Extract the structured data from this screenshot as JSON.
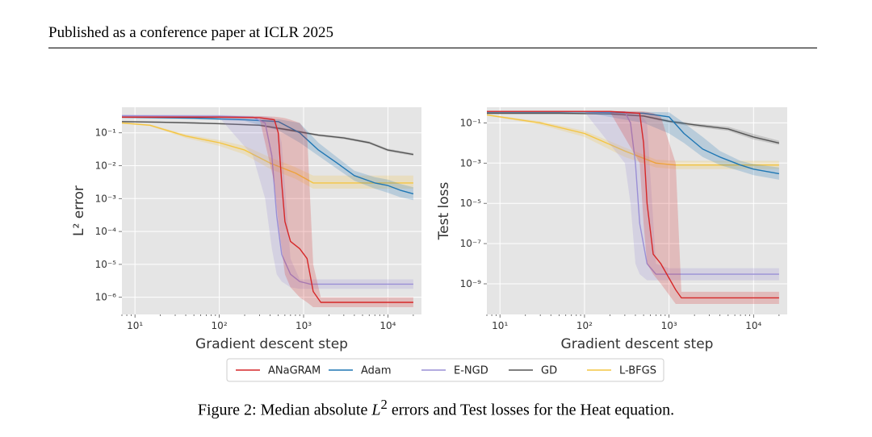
{
  "header": {
    "text": "Published as a conference paper at ICLR 2025"
  },
  "caption": {
    "prefix": "Figure 2: Median absolute",
    "math": "L",
    "sup": "2",
    "suffix": "errors and Test losses for the Heat equation."
  },
  "legend": [
    "ANaGRAM",
    "Adam",
    "E-NGD",
    "GD",
    "L-BFGS"
  ],
  "colors": {
    "ANaGRAM": "#d62728",
    "Adam": "#1f77b4",
    "E-NGD": "#9a8fd6",
    "GD": "#555555",
    "L-BFGS": "#f4c542",
    "plot_bg": "#e5e5e5",
    "grid": "#ffffff"
  },
  "chart_data": [
    {
      "type": "line",
      "xscale": "log",
      "yscale": "log",
      "xlim": [
        7,
        25000
      ],
      "ylim": [
        3e-07,
        0.6
      ],
      "xlabel": "Gradient descent step",
      "ylabel": "L² error",
      "xticks": [
        10,
        100,
        1000,
        10000
      ],
      "xtick_labels": [
        "10¹",
        "10²",
        "10³",
        "10⁴"
      ],
      "yticks": [
        1e-06,
        1e-05,
        0.0001,
        0.001,
        0.01,
        0.1
      ],
      "ytick_labels": [
        "10⁻⁶",
        "10⁻⁵",
        "10⁻⁴",
        "10⁻³",
        "10⁻²",
        "10⁻¹"
      ],
      "grid": true,
      "series": [
        {
          "name": "GD",
          "x": [
            7,
            20,
            50,
            100,
            300,
            700,
            1500,
            3000,
            6000,
            10000,
            20000
          ],
          "y": [
            0.22,
            0.21,
            0.2,
            0.19,
            0.17,
            0.12,
            0.085,
            0.07,
            0.05,
            0.03,
            0.022
          ],
          "lower": [
            0.21,
            0.2,
            0.19,
            0.18,
            0.16,
            0.11,
            0.078,
            0.064,
            0.046,
            0.027,
            0.02
          ],
          "upper": [
            0.23,
            0.22,
            0.21,
            0.2,
            0.18,
            0.13,
            0.092,
            0.076,
            0.055,
            0.033,
            0.024
          ]
        },
        {
          "name": "L-BFGS",
          "x": [
            7,
            15,
            40,
            100,
            200,
            400,
            800,
            1300,
            2000,
            5000,
            20000
          ],
          "y": [
            0.2,
            0.17,
            0.08,
            0.05,
            0.03,
            0.012,
            0.006,
            0.003,
            0.003,
            0.003,
            0.003
          ],
          "lower": [
            0.19,
            0.16,
            0.07,
            0.04,
            0.022,
            0.008,
            0.004,
            0.002,
            0.002,
            0.002,
            0.002
          ],
          "upper": [
            0.21,
            0.18,
            0.09,
            0.06,
            0.04,
            0.018,
            0.009,
            0.005,
            0.005,
            0.005,
            0.005
          ]
        },
        {
          "name": "Adam",
          "x": [
            7,
            50,
            200,
            500,
            900,
            1500,
            2500,
            4000,
            7000,
            10000,
            14000,
            20000
          ],
          "y": [
            0.3,
            0.28,
            0.25,
            0.22,
            0.1,
            0.03,
            0.012,
            0.005,
            0.003,
            0.0025,
            0.0018,
            0.0014
          ],
          "lower": [
            0.28,
            0.26,
            0.23,
            0.12,
            0.05,
            0.02,
            0.008,
            0.0035,
            0.002,
            0.0015,
            0.0011,
            0.0009
          ],
          "upper": [
            0.32,
            0.3,
            0.27,
            0.26,
            0.2,
            0.05,
            0.018,
            0.007,
            0.0045,
            0.0038,
            0.0028,
            0.0022
          ]
        },
        {
          "name": "E-NGD",
          "x": [
            7,
            100,
            250,
            350,
            420,
            480,
            550,
            700,
            900,
            1200,
            2000,
            20000
          ],
          "y": [
            0.33,
            0.32,
            0.3,
            0.2,
            0.02,
            0.0003,
            2e-05,
            5e-06,
            3e-06,
            2.5e-06,
            2.5e-06,
            2.5e-06
          ],
          "lower": [
            0.3,
            0.29,
            0.02,
            0.001,
            3e-05,
            5e-06,
            3e-06,
            2e-06,
            1.8e-06,
            1.8e-06,
            1.8e-06,
            1.8e-06
          ],
          "upper": [
            0.36,
            0.35,
            0.33,
            0.32,
            0.3,
            0.2,
            0.05,
            1.5e-05,
            3.5e-06,
            3.5e-06,
            3.5e-06,
            3.5e-06
          ]
        },
        {
          "name": "ANaGRAM",
          "x": [
            7,
            100,
            300,
            450,
            500,
            550,
            600,
            700,
            900,
            1100,
            1300,
            1600,
            20000
          ],
          "y": [
            0.3,
            0.3,
            0.29,
            0.25,
            0.1,
            0.003,
            0.0002,
            5e-05,
            3e-05,
            1.5e-05,
            1.5e-06,
            7e-07,
            7e-07
          ],
          "lower": [
            0.28,
            0.28,
            0.27,
            0.003,
            0.0002,
            3e-05,
            5e-06,
            2e-06,
            1e-06,
            7e-07,
            5e-07,
            5e-07,
            5e-07
          ],
          "upper": [
            0.32,
            0.32,
            0.32,
            0.31,
            0.3,
            0.29,
            0.28,
            0.25,
            0.2,
            0.1,
            1e-05,
            1e-06,
            1e-06
          ]
        }
      ]
    },
    {
      "type": "line",
      "xscale": "log",
      "yscale": "log",
      "xlim": [
        7,
        25000
      ],
      "ylim": [
        3e-11,
        0.6
      ],
      "xlabel": "Gradient descent step",
      "ylabel": "Test loss",
      "xticks": [
        10,
        100,
        1000,
        10000
      ],
      "xtick_labels": [
        "10¹",
        "10²",
        "10³",
        "10⁴"
      ],
      "yticks": [
        1e-09,
        1e-07,
        1e-05,
        0.001,
        0.1
      ],
      "ytick_labels": [
        "10⁻⁹",
        "10⁻⁷",
        "10⁻⁵",
        "10⁻³",
        "10⁻¹"
      ],
      "grid": true,
      "series": [
        {
          "name": "GD",
          "x": [
            7,
            50,
            200,
            500,
            1000,
            2000,
            5000,
            10000,
            20000
          ],
          "y": [
            0.3,
            0.3,
            0.28,
            0.22,
            0.12,
            0.08,
            0.05,
            0.02,
            0.01
          ],
          "lower": [
            0.28,
            0.28,
            0.26,
            0.2,
            0.1,
            0.065,
            0.04,
            0.015,
            0.008
          ],
          "upper": [
            0.32,
            0.32,
            0.3,
            0.24,
            0.14,
            0.095,
            0.065,
            0.028,
            0.013
          ]
        },
        {
          "name": "L-BFGS",
          "x": [
            7,
            30,
            100,
            300,
            700,
            1200,
            3000,
            10000,
            20000
          ],
          "y": [
            0.25,
            0.1,
            0.03,
            0.004,
            0.001,
            0.0008,
            0.0008,
            0.0008,
            0.0008
          ],
          "lower": [
            0.23,
            0.08,
            0.02,
            0.002,
            0.0006,
            0.0005,
            0.0005,
            0.0005,
            0.0005
          ],
          "upper": [
            0.27,
            0.12,
            0.04,
            0.006,
            0.0015,
            0.0013,
            0.0013,
            0.0013,
            0.0013
          ]
        },
        {
          "name": "Adam",
          "x": [
            7,
            100,
            500,
            1000,
            1500,
            2500,
            4000,
            7000,
            10000,
            20000
          ],
          "y": [
            0.35,
            0.35,
            0.3,
            0.2,
            0.03,
            0.005,
            0.002,
            0.0008,
            0.0005,
            0.0003
          ],
          "lower": [
            0.33,
            0.33,
            0.1,
            0.03,
            0.01,
            0.002,
            0.0008,
            0.0004,
            0.00025,
            0.00015
          ],
          "upper": [
            0.37,
            0.37,
            0.35,
            0.34,
            0.1,
            0.02,
            0.004,
            0.0013,
            0.0009,
            0.0006
          ]
        },
        {
          "name": "E-NGD",
          "x": [
            7,
            100,
            300,
            350,
            400,
            450,
            550,
            700,
            1000,
            20000
          ],
          "y": [
            0.37,
            0.37,
            0.35,
            0.1,
            0.001,
            1e-06,
            1e-08,
            3e-09,
            3e-09,
            3e-09
          ],
          "lower": [
            0.35,
            0.35,
            0.001,
            1e-05,
            1e-08,
            3e-09,
            1.5e-09,
            1.5e-09,
            1.5e-09,
            1.5e-09
          ],
          "upper": [
            0.39,
            0.39,
            0.38,
            0.37,
            0.35,
            0.3,
            0.1,
            1e-08,
            6e-09,
            6e-09
          ]
        },
        {
          "name": "ANaGRAM",
          "x": [
            7,
            200,
            450,
            500,
            550,
            650,
            800,
            1200,
            1400,
            20000
          ],
          "y": [
            0.37,
            0.37,
            0.3,
            0.01,
            1e-05,
            3e-08,
            1e-08,
            5e-10,
            2e-10,
            2e-10
          ],
          "lower": [
            0.35,
            0.35,
            0.001,
            1e-06,
            1e-08,
            3e-09,
            1e-09,
            1e-10,
            1e-10,
            1e-10
          ],
          "upper": [
            0.39,
            0.39,
            0.38,
            0.37,
            0.35,
            0.3,
            0.2,
            0.001,
            4e-10,
            4e-10
          ]
        }
      ]
    }
  ]
}
